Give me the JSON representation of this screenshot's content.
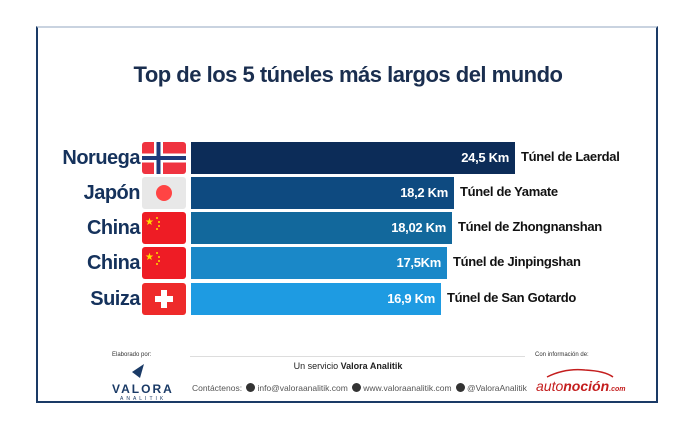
{
  "chart_data": {
    "type": "bar",
    "orientation": "horizontal",
    "title": "Top de los 5 túneles más largos del mundo",
    "categories": [
      "Noruega",
      "Japón",
      "China",
      "China",
      "Suiza"
    ],
    "flags": [
      "norway-flag",
      "japan-flag",
      "china-flag",
      "china-flag",
      "switzerland-flag"
    ],
    "values": [
      24.5,
      18.2,
      18.02,
      17.5,
      16.9
    ],
    "value_labels": [
      "24,5  Km",
      "18,2 Km",
      "18,02 Km",
      "17,5Km",
      "16,9 Km"
    ],
    "tunnel_names": [
      "Túnel de Laerdal",
      "Túnel de Yamate",
      "Túnel de Zhongnanshan",
      "Túnel de Jinpingshan",
      "Túnel de San Gotardo"
    ],
    "colors": [
      "#0c2c58",
      "#0e4a80",
      "#12689c",
      "#1a88c8",
      "#1e9be2"
    ],
    "grid": false
  },
  "footer": {
    "made_by": "Elaborado por:",
    "logo_main": "VALORA",
    "logo_sub": "ANALITIK",
    "service_prefix": "Un servicio ",
    "service_brand": "Valora Analitik",
    "contact_label": "Contáctenos:",
    "email": "info@valoraanalitik.com",
    "web": "www.valoraanalitik.com",
    "twitter": "@ValoraAnalitik",
    "source_label": "Con información de:",
    "source_a": "auto",
    "source_b": "noción",
    "source_c": ".com"
  }
}
